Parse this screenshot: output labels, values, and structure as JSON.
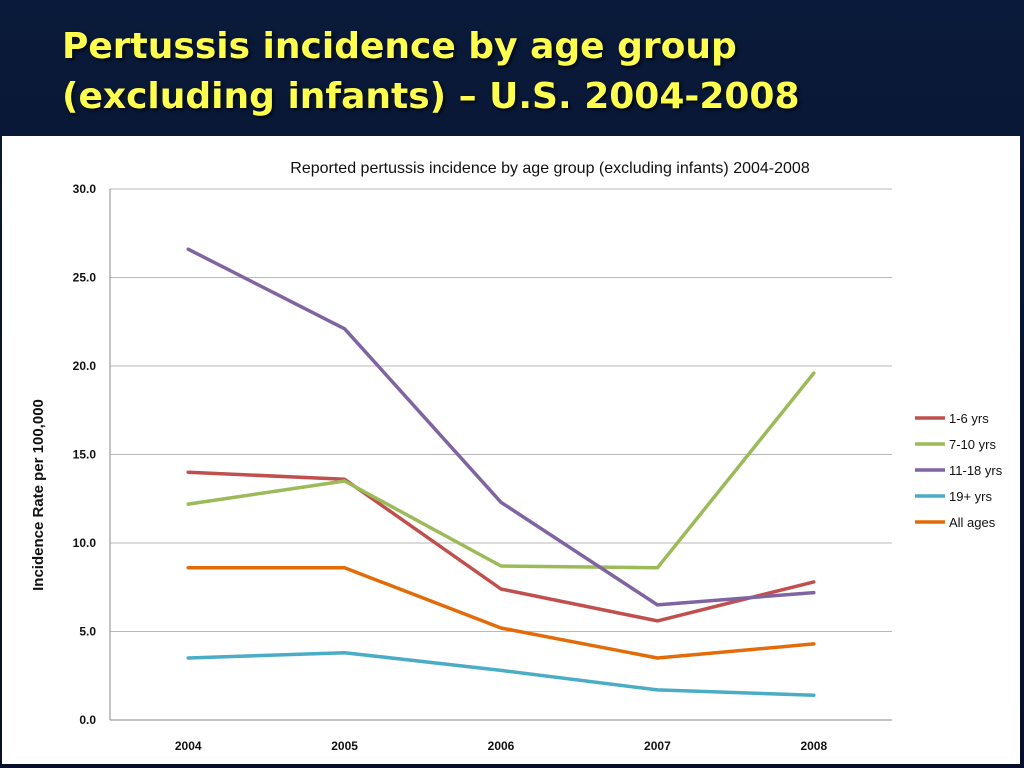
{
  "slide": {
    "title_line1": "Pertussis incidence by age group",
    "title_line2": "(excluding infants) – U.S. 2004-2008"
  },
  "chart_data": {
    "type": "line",
    "title": "Reported pertussis incidence by age group (excluding infants) 2004-2008",
    "xlabel": "",
    "ylabel": "Incidence Rate per 100,000",
    "categories": [
      "2004",
      "2005",
      "2006",
      "2007",
      "2008"
    ],
    "ylim": [
      0,
      30
    ],
    "yticks": [
      0,
      5,
      10,
      15,
      20,
      25,
      30
    ],
    "ytick_labels": [
      "0.0",
      "5.0",
      "10.0",
      "15.0",
      "20.0",
      "25.0",
      "30.0"
    ],
    "grid": true,
    "legend_position": "right",
    "series": [
      {
        "name": "1-6 yrs",
        "color": "#c0504d",
        "values": [
          14.0,
          13.6,
          7.4,
          5.6,
          7.8
        ]
      },
      {
        "name": "7-10 yrs",
        "color": "#9bbb59",
        "values": [
          12.2,
          13.5,
          8.7,
          8.6,
          19.6
        ]
      },
      {
        "name": "11-18 yrs",
        "color": "#8064a2",
        "values": [
          26.6,
          22.1,
          12.3,
          6.5,
          7.2
        ]
      },
      {
        "name": "19+ yrs",
        "color": "#4bacc6",
        "values": [
          3.5,
          3.8,
          2.8,
          1.7,
          1.4
        ]
      },
      {
        "name": "All ages",
        "color": "#e36c0a",
        "values": [
          8.6,
          8.6,
          5.2,
          3.5,
          4.3
        ]
      }
    ]
  }
}
